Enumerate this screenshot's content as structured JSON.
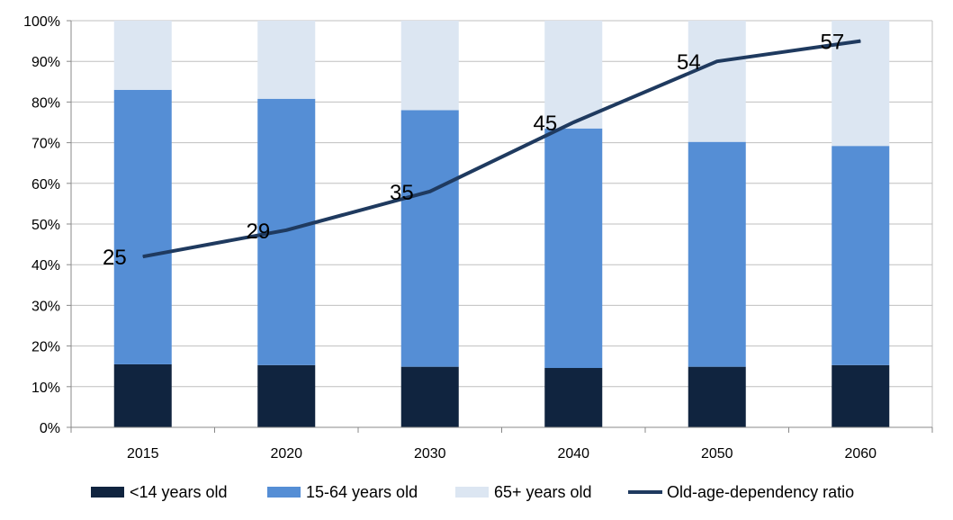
{
  "chart_data": {
    "type": "bar",
    "stacked": true,
    "categories": [
      "2015",
      "2020",
      "2030",
      "2040",
      "2050",
      "2060"
    ],
    "ylim": [
      0,
      100
    ],
    "y_ticks": [
      "0%",
      "10%",
      "20%",
      "30%",
      "40%",
      "50%",
      "60%",
      "70%",
      "80%",
      "90%",
      "100%"
    ],
    "grid": true,
    "legend_position": "bottom",
    "series": [
      {
        "name": "<14 years old",
        "color": "#10243f",
        "values": [
          15.5,
          15.3,
          14.9,
          14.6,
          14.9,
          15.3
        ]
      },
      {
        "name": "15-64 years old",
        "color": "#558ed5",
        "values": [
          67.5,
          65.5,
          63.1,
          58.9,
          55.3,
          53.9
        ]
      },
      {
        "name": "65+ years old",
        "color": "#dce6f2",
        "values": [
          17.0,
          19.2,
          22.0,
          26.5,
          29.8,
          30.8
        ]
      }
    ],
    "line_series": {
      "name": "Old-age-dependency ratio",
      "color": "#1f3a5f",
      "plotted_percent": [
        42,
        48.5,
        58,
        75,
        90,
        95
      ],
      "labels": [
        "25",
        "29",
        "35",
        "45",
        "54",
        "57"
      ]
    }
  }
}
